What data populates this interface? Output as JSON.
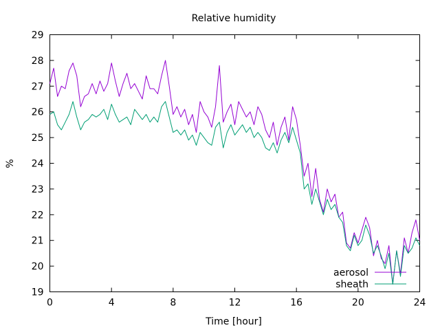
{
  "chart_data": {
    "type": "line",
    "title": "Relative humidity",
    "xlabel": "Time [hour]",
    "ylabel": "%",
    "xlim": [
      0,
      24
    ],
    "ylim": [
      19,
      29
    ],
    "x_ticks": [
      0,
      4,
      8,
      12,
      16,
      20,
      24
    ],
    "y_ticks": [
      19,
      20,
      21,
      22,
      23,
      24,
      25,
      26,
      27,
      28,
      29
    ],
    "grid": false,
    "legend_position": "bottom-right",
    "series": [
      {
        "name": "aerosol",
        "color": "#9400d3",
        "x": [
          0,
          0.25,
          0.5,
          0.75,
          1,
          1.25,
          1.5,
          1.75,
          2,
          2.25,
          2.5,
          2.75,
          3,
          3.25,
          3.5,
          3.75,
          4,
          4.25,
          4.5,
          4.75,
          5,
          5.25,
          5.5,
          5.75,
          6,
          6.25,
          6.5,
          6.75,
          7,
          7.25,
          7.5,
          7.75,
          8,
          8.25,
          8.5,
          8.75,
          9,
          9.25,
          9.5,
          9.75,
          10,
          10.25,
          10.5,
          10.75,
          11,
          11.25,
          11.5,
          11.75,
          12,
          12.25,
          12.5,
          12.75,
          13,
          13.25,
          13.5,
          13.75,
          14,
          14.25,
          14.5,
          14.75,
          15,
          15.25,
          15.5,
          15.75,
          16,
          16.25,
          16.5,
          16.75,
          17,
          17.25,
          17.5,
          17.75,
          18,
          18.25,
          18.5,
          18.75,
          19,
          19.25,
          19.5,
          19.75,
          20,
          20.25,
          20.5,
          20.75,
          21,
          21.25,
          21.5,
          21.75,
          22,
          22.25,
          22.5,
          22.75,
          23,
          23.25,
          23.5,
          23.75,
          24
        ],
        "y": [
          27.1,
          27.7,
          26.6,
          27.0,
          26.9,
          27.6,
          27.9,
          27.4,
          26.2,
          26.6,
          26.7,
          27.1,
          26.7,
          27.2,
          26.8,
          27.1,
          27.9,
          27.2,
          26.6,
          27.1,
          27.5,
          26.9,
          27.1,
          26.8,
          26.5,
          27.4,
          26.9,
          26.9,
          26.7,
          27.4,
          28.0,
          27.0,
          25.9,
          26.2,
          25.8,
          26.1,
          25.5,
          25.9,
          25.2,
          26.4,
          26.0,
          25.8,
          25.4,
          26.2,
          27.8,
          25.6,
          26.0,
          26.3,
          25.5,
          26.4,
          26.1,
          25.8,
          26.0,
          25.5,
          26.2,
          25.9,
          25.3,
          25.0,
          25.6,
          24.7,
          25.4,
          25.8,
          24.9,
          26.2,
          25.7,
          24.7,
          23.5,
          24.0,
          22.7,
          23.8,
          22.6,
          22.1,
          23.0,
          22.5,
          22.8,
          21.9,
          22.1,
          20.9,
          20.7,
          21.3,
          20.9,
          21.4,
          21.9,
          21.5,
          20.4,
          21.0,
          20.3,
          20.1,
          20.8,
          19.3,
          20.6,
          19.7,
          21.1,
          20.5,
          21.3,
          21.8,
          21.0
        ]
      },
      {
        "name": "sheath",
        "color": "#009e73",
        "x": [
          0,
          0.25,
          0.5,
          0.75,
          1,
          1.25,
          1.5,
          1.75,
          2,
          2.25,
          2.5,
          2.75,
          3,
          3.25,
          3.5,
          3.75,
          4,
          4.25,
          4.5,
          4.75,
          5,
          5.25,
          5.5,
          5.75,
          6,
          6.25,
          6.5,
          6.75,
          7,
          7.25,
          7.5,
          7.75,
          8,
          8.25,
          8.5,
          8.75,
          9,
          9.25,
          9.5,
          9.75,
          10,
          10.25,
          10.5,
          10.75,
          11,
          11.25,
          11.5,
          11.75,
          12,
          12.25,
          12.5,
          12.75,
          13,
          13.25,
          13.5,
          13.75,
          14,
          14.25,
          14.5,
          14.75,
          15,
          15.25,
          15.5,
          15.75,
          16,
          16.25,
          16.5,
          16.75,
          17,
          17.25,
          17.5,
          17.75,
          18,
          18.25,
          18.5,
          18.75,
          19,
          19.25,
          19.5,
          19.75,
          20,
          20.25,
          20.5,
          20.75,
          21,
          21.25,
          21.5,
          21.75,
          22,
          22.25,
          22.5,
          22.75,
          23,
          23.25,
          23.5,
          23.75,
          24
        ],
        "y": [
          25.9,
          26.0,
          25.5,
          25.3,
          25.6,
          25.9,
          26.4,
          25.8,
          25.3,
          25.6,
          25.7,
          25.9,
          25.8,
          25.9,
          26.1,
          25.7,
          26.3,
          25.9,
          25.6,
          25.7,
          25.8,
          25.5,
          26.1,
          25.9,
          25.7,
          25.9,
          25.6,
          25.8,
          25.6,
          26.2,
          26.4,
          25.8,
          25.2,
          25.3,
          25.1,
          25.3,
          24.9,
          25.1,
          24.7,
          25.2,
          25.0,
          24.8,
          24.7,
          25.4,
          25.6,
          24.6,
          25.2,
          25.5,
          25.1,
          25.3,
          25.5,
          25.2,
          25.4,
          25.0,
          25.2,
          25.0,
          24.6,
          24.5,
          24.8,
          24.4,
          24.9,
          25.2,
          24.8,
          25.4,
          24.9,
          24.4,
          23.0,
          23.2,
          22.4,
          23.0,
          22.5,
          22.0,
          22.6,
          22.2,
          22.4,
          21.9,
          21.7,
          20.8,
          20.6,
          21.2,
          20.8,
          21.0,
          21.6,
          21.2,
          20.5,
          20.8,
          20.4,
          19.9,
          20.5,
          19.3,
          20.6,
          19.6,
          20.8,
          20.5,
          20.7,
          21.1,
          20.8
        ]
      }
    ]
  }
}
